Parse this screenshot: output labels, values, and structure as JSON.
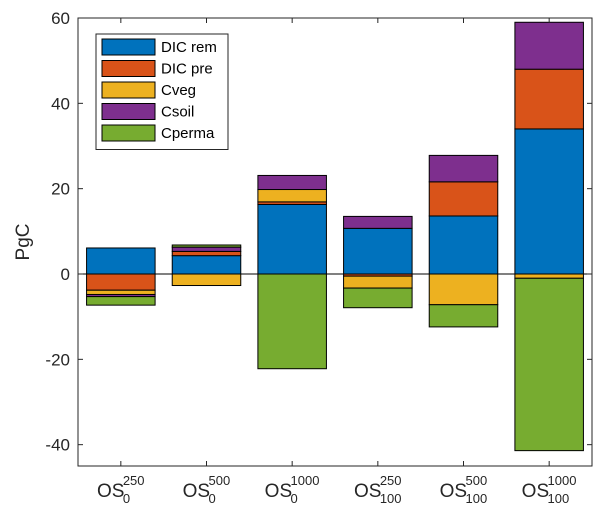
{
  "chart_data": {
    "type": "bar",
    "stacked": true,
    "title": "",
    "xlabel": "",
    "ylabel": "PgC",
    "ylim": [
      -45,
      60
    ],
    "yticks": [
      -40,
      -20,
      0,
      20,
      40,
      60
    ],
    "categories": [
      {
        "base": "OS",
        "sub": "0",
        "sup": "250"
      },
      {
        "base": "OS",
        "sub": "0",
        "sup": "500"
      },
      {
        "base": "OS",
        "sub": "0",
        "sup": "1000"
      },
      {
        "base": "OS",
        "sub": "100",
        "sup": "250"
      },
      {
        "base": "OS",
        "sub": "100",
        "sup": "500"
      },
      {
        "base": "OS",
        "sub": "100",
        "sup": "1000"
      }
    ],
    "series": [
      {
        "name": "DIC rem",
        "color": "#0072BD",
        "values": [
          6.1,
          4.3,
          16.3,
          10.7,
          13.6,
          34.0
        ]
      },
      {
        "name": "DIC pre",
        "color": "#D95319",
        "values": [
          -3.8,
          1.0,
          0.6,
          -0.5,
          8.0,
          14.0
        ]
      },
      {
        "name": "Cveg",
        "color": "#EDB120",
        "values": [
          -1.0,
          -2.7,
          2.9,
          -2.8,
          -7.2,
          -1.0
        ]
      },
      {
        "name": "Csoil",
        "color": "#7E2F8E",
        "values": [
          -0.5,
          1.0,
          3.3,
          2.8,
          6.2,
          11.0
        ]
      },
      {
        "name": "Cperma",
        "color": "#77AC30",
        "values": [
          -2.0,
          0.5,
          -22.2,
          -4.6,
          -5.2,
          -40.4
        ]
      }
    ],
    "legend_position": "top-left"
  }
}
